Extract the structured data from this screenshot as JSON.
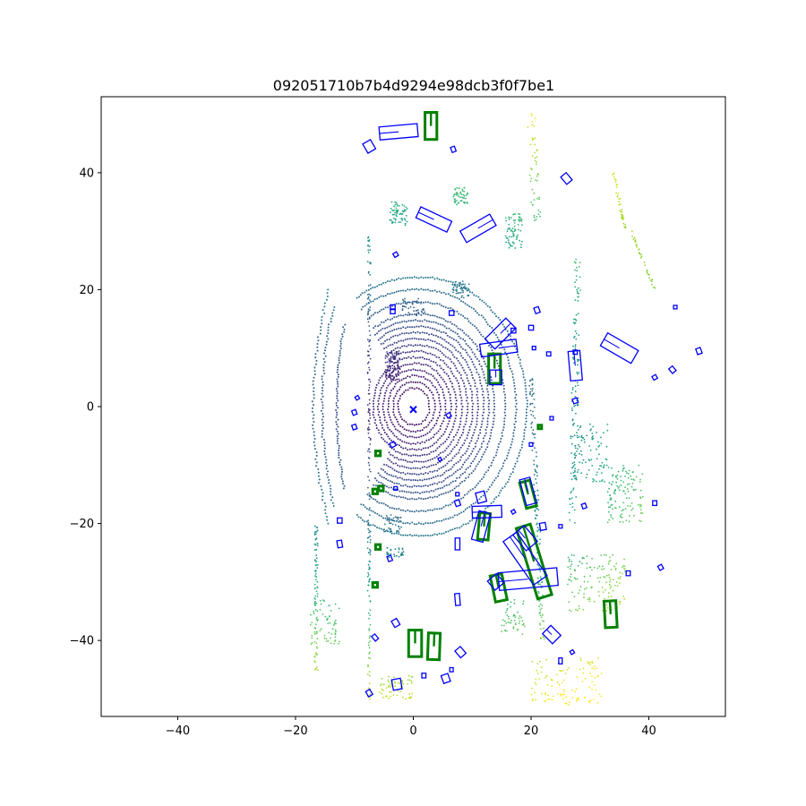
{
  "chart_data": {
    "type": "scatter",
    "title": "092051710b7b4d9294e98dcb3f0f7be1",
    "xlabel": "",
    "ylabel": "",
    "xlim": [
      -53,
      53
    ],
    "ylim": [
      -53,
      53
    ],
    "x_ticks": [
      -40,
      -20,
      0,
      20,
      40
    ],
    "y_ticks": [
      -40,
      -20,
      0,
      20,
      40
    ],
    "grid": false,
    "colormap": "viridis",
    "lidar_rings": [
      3,
      4,
      5,
      6,
      7,
      8,
      9,
      10,
      11,
      12,
      13,
      14,
      15,
      17,
      19,
      21
    ],
    "ego_marker": {
      "x": 0,
      "y": -0.5,
      "color": "#0000ff"
    },
    "colors": {
      "gt_box": "#008000",
      "pred_box": "#0000ff"
    },
    "gt_boxes": [
      {
        "cx": 3,
        "cy": 48,
        "w": 2,
        "l": 4.6,
        "yaw": 0
      },
      {
        "cx": 13.8,
        "cy": 6.5,
        "w": 2,
        "l": 5,
        "yaw": 0
      },
      {
        "cx": 19.5,
        "cy": -15,
        "w": 1.8,
        "l": 4.5,
        "yaw": 15
      },
      {
        "cx": 12,
        "cy": -20.5,
        "w": 1.8,
        "l": 4.5,
        "yaw": -5
      },
      {
        "cx": 20.5,
        "cy": -26.5,
        "w": 2.5,
        "l": 12.5,
        "yaw": 17
      },
      {
        "cx": 14.5,
        "cy": -31,
        "w": 2,
        "l": 4.5,
        "yaw": 12
      },
      {
        "cx": 33.5,
        "cy": -35.5,
        "w": 2,
        "l": 4.5,
        "yaw": 3
      },
      {
        "cx": 0.3,
        "cy": -40.5,
        "w": 2.2,
        "l": 4.5,
        "yaw": 0
      },
      {
        "cx": 3.5,
        "cy": -41,
        "w": 2,
        "l": 4.5,
        "yaw": -2
      },
      {
        "cx": 21.5,
        "cy": -3.5,
        "w": 0.6,
        "l": 0.6,
        "yaw": 0
      },
      {
        "cx": -6,
        "cy": -8,
        "w": 0.8,
        "l": 0.8,
        "yaw": 0
      },
      {
        "cx": -6.5,
        "cy": -14.5,
        "w": 0.8,
        "l": 0.8,
        "yaw": 0
      },
      {
        "cx": -5.5,
        "cy": -14,
        "w": 0.8,
        "l": 0.8,
        "yaw": 0
      },
      {
        "cx": -6,
        "cy": -24,
        "w": 0.8,
        "l": 0.8,
        "yaw": 0
      },
      {
        "cx": -6.5,
        "cy": -30.5,
        "w": 0.8,
        "l": 0.8,
        "yaw": 0
      }
    ],
    "pred_boxes": [
      {
        "cx": -2.5,
        "cy": 47,
        "w": 2.2,
        "l": 6.5,
        "yaw": 95
      },
      {
        "cx": -7.5,
        "cy": 44.5,
        "w": 1.5,
        "l": 1.8,
        "yaw": 30
      },
      {
        "cx": 6.8,
        "cy": 44,
        "w": 0.7,
        "l": 0.9,
        "yaw": 20
      },
      {
        "cx": 26,
        "cy": 39,
        "w": 1.2,
        "l": 1.6,
        "yaw": 40
      },
      {
        "cx": 3.5,
        "cy": 32,
        "w": 2,
        "l": 5.8,
        "yaw": 65
      },
      {
        "cx": 11,
        "cy": 30.5,
        "w": 2.2,
        "l": 5.8,
        "yaw": -60
      },
      {
        "cx": -3,
        "cy": 26,
        "w": 0.7,
        "l": 0.7,
        "yaw": 30
      },
      {
        "cx": 6.5,
        "cy": 16,
        "w": 0.8,
        "l": 0.8,
        "yaw": 0
      },
      {
        "cx": -3.5,
        "cy": 17,
        "w": 0.8,
        "l": 0.8,
        "yaw": 0
      },
      {
        "cx": -3.5,
        "cy": 16.3,
        "w": 0.8,
        "l": 0.8,
        "yaw": 0
      },
      {
        "cx": 17,
        "cy": 13,
        "w": 0.8,
        "l": 0.8,
        "yaw": 0
      },
      {
        "cx": 21,
        "cy": 16.5,
        "w": 0.8,
        "l": 1,
        "yaw": 20
      },
      {
        "cx": 20,
        "cy": 13.5,
        "w": 0.8,
        "l": 0.8,
        "yaw": 0
      },
      {
        "cx": 14.8,
        "cy": 12.5,
        "w": 2.4,
        "l": 5,
        "yaw": -45
      },
      {
        "cx": 14.5,
        "cy": 10,
        "w": 2.2,
        "l": 6.2,
        "yaw": -82
      },
      {
        "cx": 35,
        "cy": 10,
        "w": 2.5,
        "l": 6,
        "yaw": 60
      },
      {
        "cx": 27.5,
        "cy": 7,
        "w": 2,
        "l": 5,
        "yaw": 5
      },
      {
        "cx": 20.5,
        "cy": 10,
        "w": 0.6,
        "l": 0.6,
        "yaw": 0
      },
      {
        "cx": 23,
        "cy": 9,
        "w": 0.7,
        "l": 0.7,
        "yaw": 0
      },
      {
        "cx": 27.5,
        "cy": 9.3,
        "w": 0.7,
        "l": 0.7,
        "yaw": 0
      },
      {
        "cx": 14,
        "cy": 5,
        "w": 2,
        "l": 2.5,
        "yaw": 0
      },
      {
        "cx": 41,
        "cy": 5,
        "w": 0.7,
        "l": 0.7,
        "yaw": 30
      },
      {
        "cx": 44,
        "cy": 6.3,
        "w": 0.8,
        "l": 1,
        "yaw": 40
      },
      {
        "cx": 48.5,
        "cy": 9.5,
        "w": 0.8,
        "l": 1,
        "yaw": 20
      },
      {
        "cx": 44.5,
        "cy": 17,
        "w": 0.6,
        "l": 0.6,
        "yaw": 0
      },
      {
        "cx": 27.5,
        "cy": 1,
        "w": 0.8,
        "l": 0.8,
        "yaw": 20
      },
      {
        "cx": 23.5,
        "cy": -2,
        "w": 0.6,
        "l": 0.6,
        "yaw": 0
      },
      {
        "cx": 20,
        "cy": -6.5,
        "w": 0.6,
        "l": 0.6,
        "yaw": 0
      },
      {
        "cx": 6,
        "cy": -1.5,
        "w": 0.7,
        "l": 0.7,
        "yaw": 30
      },
      {
        "cx": -9.5,
        "cy": 1.5,
        "w": 0.6,
        "l": 0.6,
        "yaw": 30
      },
      {
        "cx": -10,
        "cy": -1,
        "w": 0.7,
        "l": 0.8,
        "yaw": 20
      },
      {
        "cx": -10,
        "cy": -3.5,
        "w": 0.7,
        "l": 0.8,
        "yaw": 20
      },
      {
        "cx": -3.5,
        "cy": -6.5,
        "w": 0.8,
        "l": 0.8,
        "yaw": 30
      },
      {
        "cx": 4.5,
        "cy": -9,
        "w": 0.5,
        "l": 0.5,
        "yaw": 30
      },
      {
        "cx": -3,
        "cy": -14,
        "w": 0.6,
        "l": 0.6,
        "yaw": 0
      },
      {
        "cx": 19.5,
        "cy": -14.5,
        "w": 1.8,
        "l": 4.5,
        "yaw": 15
      },
      {
        "cx": 7.5,
        "cy": -15,
        "w": 0.6,
        "l": 0.6,
        "yaw": 0
      },
      {
        "cx": 11.5,
        "cy": -15.5,
        "w": 1.5,
        "l": 1.8,
        "yaw": 15
      },
      {
        "cx": 7.5,
        "cy": -16.5,
        "w": 0.8,
        "l": 1,
        "yaw": 20
      },
      {
        "cx": 29,
        "cy": -17,
        "w": 0.7,
        "l": 0.8,
        "yaw": 20
      },
      {
        "cx": 41,
        "cy": -16.5,
        "w": 0.7,
        "l": 0.8,
        "yaw": 0
      },
      {
        "cx": 12.5,
        "cy": -18,
        "w": 2,
        "l": 5,
        "yaw": 92
      },
      {
        "cx": 17,
        "cy": -18,
        "w": 0.6,
        "l": 0.6,
        "yaw": 30
      },
      {
        "cx": 11.5,
        "cy": -20.5,
        "w": 2,
        "l": 5,
        "yaw": -15
      },
      {
        "cx": -12.5,
        "cy": -19.5,
        "w": 0.8,
        "l": 0.9,
        "yaw": 0
      },
      {
        "cx": 22,
        "cy": -20.5,
        "w": 1,
        "l": 1.2,
        "yaw": 10
      },
      {
        "cx": 25,
        "cy": -20.5,
        "w": 0.6,
        "l": 0.6,
        "yaw": 0
      },
      {
        "cx": 19,
        "cy": -22.5,
        "w": 2.5,
        "l": 3.5,
        "yaw": 40
      },
      {
        "cx": -12.5,
        "cy": -23.5,
        "w": 0.8,
        "l": 1.2,
        "yaw": 10
      },
      {
        "cx": 7.5,
        "cy": -23.5,
        "w": 0.8,
        "l": 2,
        "yaw": 0
      },
      {
        "cx": -4,
        "cy": -26,
        "w": 0.7,
        "l": 0.9,
        "yaw": 20
      },
      {
        "cx": 19,
        "cy": -26,
        "w": 2.8,
        "l": 9,
        "yaw": 35
      },
      {
        "cx": 19.5,
        "cy": -29.5,
        "w": 3,
        "l": 10,
        "yaw": 95
      },
      {
        "cx": 14,
        "cy": -30,
        "w": 2,
        "l": 2,
        "yaw": 40
      },
      {
        "cx": 36.5,
        "cy": -28.5,
        "w": 0.7,
        "l": 0.8,
        "yaw": 0
      },
      {
        "cx": 42,
        "cy": -27.5,
        "w": 0.7,
        "l": 0.8,
        "yaw": 30
      },
      {
        "cx": 7.5,
        "cy": -33,
        "w": 0.8,
        "l": 2,
        "yaw": 5
      },
      {
        "cx": -3,
        "cy": -37,
        "w": 1,
        "l": 1.2,
        "yaw": 30
      },
      {
        "cx": 23.5,
        "cy": -39,
        "w": 2,
        "l": 2.4,
        "yaw": 45
      },
      {
        "cx": -6.5,
        "cy": -39.5,
        "w": 0.7,
        "l": 1,
        "yaw": 40
      },
      {
        "cx": 8,
        "cy": -42,
        "w": 1.2,
        "l": 1.5,
        "yaw": 40
      },
      {
        "cx": 27,
        "cy": -42,
        "w": 0.6,
        "l": 0.6,
        "yaw": 30
      },
      {
        "cx": 25,
        "cy": -43.5,
        "w": 0.6,
        "l": 1,
        "yaw": 0
      },
      {
        "cx": 6.5,
        "cy": -45,
        "w": 0.6,
        "l": 0.7,
        "yaw": 0
      },
      {
        "cx": 1.8,
        "cy": -46,
        "w": 0.7,
        "l": 0.8,
        "yaw": 0
      },
      {
        "cx": 5.5,
        "cy": -46.5,
        "w": 1.2,
        "l": 1.4,
        "yaw": 20
      },
      {
        "cx": -2.8,
        "cy": -47.5,
        "w": 1.5,
        "l": 1.8,
        "yaw": 10
      },
      {
        "cx": -7.5,
        "cy": -49,
        "w": 0.8,
        "l": 1,
        "yaw": 30
      }
    ]
  }
}
